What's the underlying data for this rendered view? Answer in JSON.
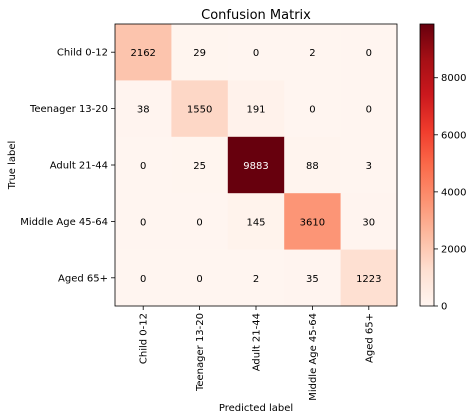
{
  "chart_data": {
    "type": "heatmap",
    "title": "Confusion Matrix",
    "xlabel": "Predicted label",
    "ylabel": "True label",
    "x_categories": [
      "Child 0-12",
      "Teenager 13-20",
      "Adult 21-44",
      "Middle Age 45-64",
      "Aged 65+"
    ],
    "y_categories": [
      "Child 0-12",
      "Teenager 13-20",
      "Adult 21-44",
      "Middle Age 45-64",
      "Aged 65+"
    ],
    "values": [
      [
        2162,
        29,
        0,
        2,
        0
      ],
      [
        38,
        1550,
        191,
        0,
        0
      ],
      [
        0,
        25,
        9883,
        88,
        3
      ],
      [
        0,
        0,
        145,
        3610,
        30
      ],
      [
        0,
        0,
        2,
        35,
        1223
      ]
    ],
    "colormap": "Reds",
    "vmin": 0,
    "vmax": 9883,
    "colorbar_ticks": [
      0,
      2000,
      4000,
      6000,
      8000
    ],
    "colorbar_tick_labels": [
      "0",
      "2000",
      "4000",
      "6000",
      "8000"
    ]
  }
}
